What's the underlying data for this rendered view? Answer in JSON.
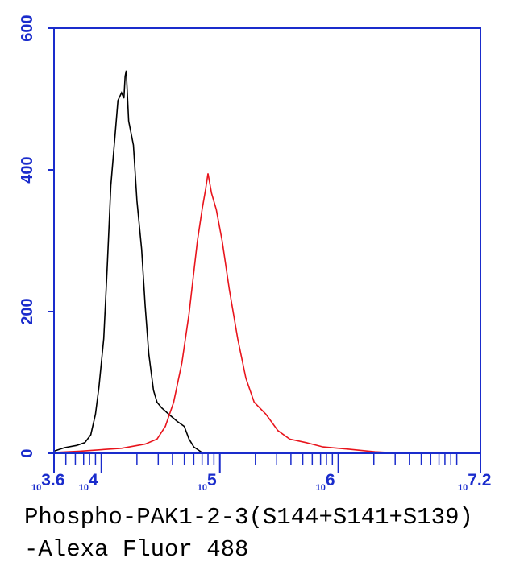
{
  "chart_data": {
    "type": "line",
    "x_label": [
      "Phospho-PAK1-2-3(S144+S141+S139)",
      "-Alexa Fluor 488"
    ],
    "log_x": true,
    "xtick_base": "10",
    "xlim": [
      3.6,
      7.2
    ],
    "xticks": [
      3.6,
      4,
      5,
      6,
      7.2
    ],
    "xticks_minor": [
      3.7,
      3.78,
      3.85,
      3.9,
      3.95,
      4.3,
      4.48,
      4.6,
      4.7,
      4.78,
      4.85,
      4.9,
      4.95,
      5.3,
      5.48,
      5.6,
      5.7,
      5.78,
      5.85,
      5.9,
      5.95,
      6.3,
      6.48,
      6.6,
      6.7,
      6.78,
      6.85,
      6.9,
      6.95,
      7.0
    ],
    "ylim": [
      0,
      600
    ],
    "yticks": [
      0,
      200,
      400,
      600
    ],
    "axis_color": "#1a2ccc",
    "series": [
      {
        "color": "#000000",
        "x": [
          3.6,
          3.69,
          3.79,
          3.86,
          3.91,
          3.95,
          3.98,
          4.02,
          4.05,
          4.08,
          4.12,
          4.14,
          4.17,
          4.19,
          4.2,
          4.21,
          4.23,
          4.27,
          4.3,
          4.34,
          4.37,
          4.4,
          4.44,
          4.47,
          4.51,
          4.57,
          4.64,
          4.7,
          4.74,
          4.78,
          4.85,
          4.91,
          5.19
        ],
        "values": [
          3,
          8,
          11,
          15,
          26,
          55,
          94,
          162,
          265,
          378,
          458,
          498,
          509,
          501,
          532,
          540,
          469,
          435,
          356,
          288,
          208,
          140,
          89,
          72,
          64,
          55,
          45,
          38,
          20,
          9,
          1,
          0,
          0
        ]
      },
      {
        "color": "#e8141c",
        "x": [
          3.6,
          3.82,
          4.17,
          4.37,
          4.47,
          4.54,
          4.61,
          4.68,
          4.74,
          4.81,
          4.85,
          4.88,
          4.9,
          4.93,
          4.97,
          5.02,
          5.08,
          5.15,
          5.22,
          5.29,
          5.39,
          5.49,
          5.59,
          5.73,
          5.87,
          6.07,
          6.31,
          6.55
        ],
        "values": [
          1,
          3,
          7,
          13,
          20,
          38,
          72,
          128,
          197,
          299,
          344,
          373,
          395,
          367,
          344,
          299,
          231,
          162,
          106,
          72,
          55,
          32,
          20,
          15,
          9,
          6,
          2,
          0
        ]
      }
    ]
  }
}
